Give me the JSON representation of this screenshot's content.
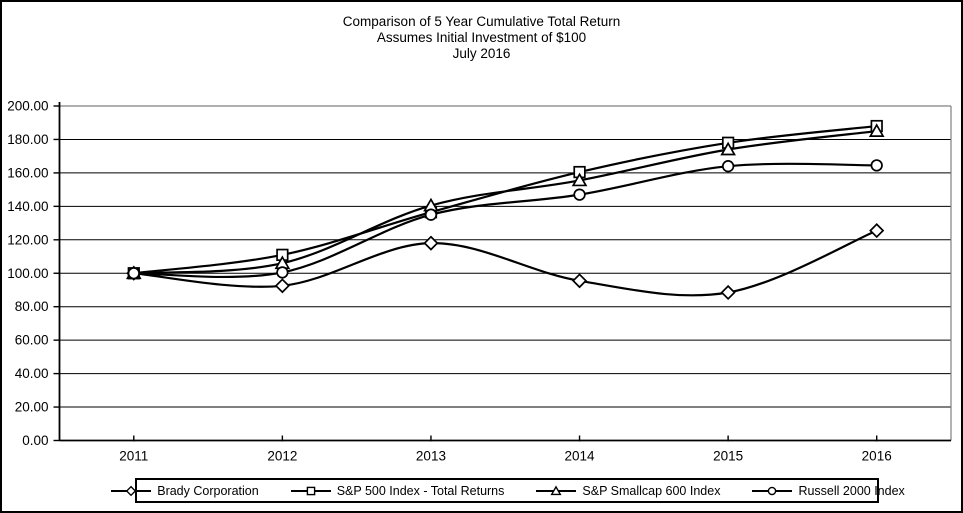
{
  "title": {
    "line1": "Comparison of 5 Year Cumulative Total Return",
    "line2": "Assumes Initial Investment of $100",
    "line3": "July 2016"
  },
  "chart_data": {
    "type": "line",
    "smoothed": true,
    "categories": [
      "2011",
      "2012",
      "2013",
      "2014",
      "2015",
      "2016"
    ],
    "series": [
      {
        "name": "Brady Corporation",
        "marker": "diamond",
        "values": [
          100.0,
          92.5,
          118.0,
          95.5,
          88.5,
          125.5
        ]
      },
      {
        "name": "S&P 500 Index - Total Returns",
        "marker": "square",
        "values": [
          100.0,
          111.0,
          136.5,
          160.5,
          178.0,
          188.0
        ]
      },
      {
        "name": "S&P Smallcap 600 Index",
        "marker": "triangle",
        "values": [
          100.0,
          106.0,
          140.5,
          155.5,
          174.0,
          185.0
        ]
      },
      {
        "name": "Russell 2000 Index",
        "marker": "circle",
        "values": [
          100.0,
          100.5,
          135.0,
          147.0,
          164.0,
          164.5
        ]
      }
    ],
    "ylim": [
      0,
      200
    ],
    "y_tick_step": 20,
    "y_tick_labels": [
      "0.00",
      "20.00",
      "40.00",
      "60.00",
      "80.00",
      "100.00",
      "120.00",
      "140.00",
      "160.00",
      "180.00",
      "200.00"
    ],
    "xlabel": "",
    "ylabel": "",
    "grid": true,
    "legend_position": "bottom",
    "colors": {
      "series_line": "#000000",
      "marker_fill": "#ffffff",
      "grid_line": "#000000",
      "axis_line": "#000000",
      "plot_border": "#808080",
      "text": "#000000",
      "background": "#ffffff"
    }
  }
}
